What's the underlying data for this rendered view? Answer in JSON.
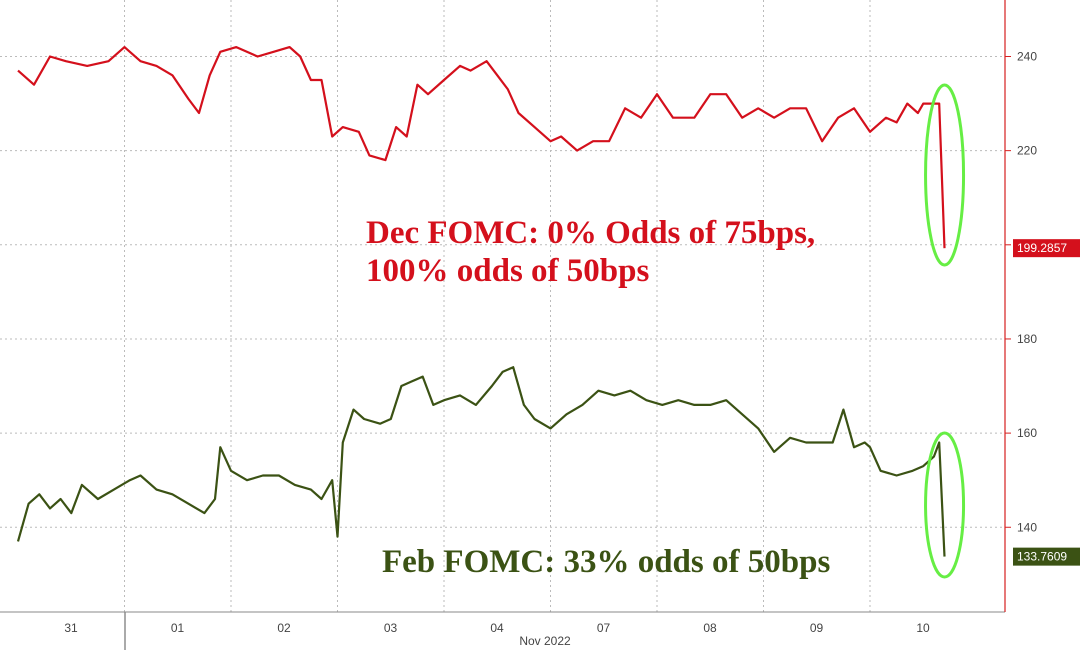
{
  "chart_data": {
    "type": "line",
    "xlabel": "Nov 2022",
    "x_ticks": [
      "31",
      "01",
      "02",
      "03",
      "04",
      "07",
      "08",
      "09",
      "10"
    ],
    "y_ticks": [
      140,
      160,
      180,
      200,
      220,
      240
    ],
    "ylim": [
      122,
      252
    ],
    "grid": true,
    "colors": {
      "red": "#d4101c",
      "green": "#3b5214",
      "highlight": "#66ee44",
      "axis": "#d62020"
    },
    "series": [
      {
        "color": "#d4101c",
        "last_value_label": "199.2857",
        "last_value": 199.2857,
        "points": [
          [
            0,
            237
          ],
          [
            0.3,
            234
          ],
          [
            0.6,
            240
          ],
          [
            0.9,
            239
          ],
          [
            1.3,
            238
          ],
          [
            1.7,
            239
          ],
          [
            2.0,
            242
          ],
          [
            2.3,
            239
          ],
          [
            2.6,
            238
          ],
          [
            2.9,
            236
          ],
          [
            3.2,
            231
          ],
          [
            3.4,
            228
          ],
          [
            3.6,
            236
          ],
          [
            3.8,
            241
          ],
          [
            4.1,
            242
          ],
          [
            4.5,
            240
          ],
          [
            4.8,
            241
          ],
          [
            5.1,
            242
          ],
          [
            5.3,
            240
          ],
          [
            5.5,
            235
          ],
          [
            5.7,
            235
          ],
          [
            5.9,
            223
          ],
          [
            6.1,
            225
          ],
          [
            6.4,
            224
          ],
          [
            6.6,
            219
          ],
          [
            6.9,
            218
          ],
          [
            7.1,
            225
          ],
          [
            7.3,
            223
          ],
          [
            7.5,
            234
          ],
          [
            7.7,
            232
          ],
          [
            8.0,
            235
          ],
          [
            8.3,
            238
          ],
          [
            8.5,
            237
          ],
          [
            8.8,
            239
          ],
          [
            9.0,
            236
          ],
          [
            9.2,
            233
          ],
          [
            9.4,
            228
          ],
          [
            9.7,
            225
          ],
          [
            10.0,
            222
          ],
          [
            10.2,
            223
          ],
          [
            10.5,
            220
          ],
          [
            10.8,
            222
          ],
          [
            11.1,
            222
          ],
          [
            11.4,
            229
          ],
          [
            11.7,
            227
          ],
          [
            12.0,
            232
          ],
          [
            12.3,
            227
          ],
          [
            12.7,
            227
          ],
          [
            13.0,
            232
          ],
          [
            13.3,
            232
          ],
          [
            13.6,
            227
          ],
          [
            13.9,
            229
          ],
          [
            14.2,
            227
          ],
          [
            14.5,
            229
          ],
          [
            14.8,
            229
          ],
          [
            15.1,
            222
          ],
          [
            15.4,
            227
          ],
          [
            15.7,
            229
          ],
          [
            16.0,
            224
          ],
          [
            16.3,
            227
          ],
          [
            16.5,
            226
          ],
          [
            16.7,
            230
          ],
          [
            16.9,
            228
          ],
          [
            17.0,
            230
          ],
          [
            17.3,
            230
          ],
          [
            17.4,
            199.2857
          ]
        ]
      },
      {
        "color": "#3b5214",
        "last_value_label": "133.7609",
        "last_value": 133.7609,
        "points": [
          [
            0,
            137
          ],
          [
            0.2,
            145
          ],
          [
            0.4,
            147
          ],
          [
            0.6,
            144
          ],
          [
            0.8,
            146
          ],
          [
            1.0,
            143
          ],
          [
            1.2,
            149
          ],
          [
            1.5,
            146
          ],
          [
            1.8,
            148
          ],
          [
            2.1,
            150
          ],
          [
            2.3,
            151
          ],
          [
            2.6,
            148
          ],
          [
            2.9,
            147
          ],
          [
            3.2,
            145
          ],
          [
            3.5,
            143
          ],
          [
            3.7,
            146
          ],
          [
            3.8,
            157
          ],
          [
            4.0,
            152
          ],
          [
            4.3,
            150
          ],
          [
            4.6,
            151
          ],
          [
            4.9,
            151
          ],
          [
            5.2,
            149
          ],
          [
            5.5,
            148
          ],
          [
            5.7,
            146
          ],
          [
            5.9,
            150
          ],
          [
            6.0,
            138
          ],
          [
            6.1,
            158
          ],
          [
            6.3,
            165
          ],
          [
            6.5,
            163
          ],
          [
            6.8,
            162
          ],
          [
            7.0,
            163
          ],
          [
            7.2,
            170
          ],
          [
            7.4,
            171
          ],
          [
            7.6,
            172
          ],
          [
            7.8,
            166
          ],
          [
            8.0,
            167
          ],
          [
            8.3,
            168
          ],
          [
            8.6,
            166
          ],
          [
            8.9,
            170
          ],
          [
            9.1,
            173
          ],
          [
            9.3,
            174
          ],
          [
            9.5,
            166
          ],
          [
            9.7,
            163
          ],
          [
            10.0,
            161
          ],
          [
            10.3,
            164
          ],
          [
            10.6,
            166
          ],
          [
            10.9,
            169
          ],
          [
            11.2,
            168
          ],
          [
            11.5,
            169
          ],
          [
            11.8,
            167
          ],
          [
            12.1,
            166
          ],
          [
            12.4,
            167
          ],
          [
            12.7,
            166
          ],
          [
            13.0,
            166
          ],
          [
            13.3,
            167
          ],
          [
            13.6,
            164
          ],
          [
            13.9,
            161
          ],
          [
            14.2,
            156
          ],
          [
            14.5,
            159
          ],
          [
            14.8,
            158
          ],
          [
            15.1,
            158
          ],
          [
            15.3,
            158
          ],
          [
            15.5,
            165
          ],
          [
            15.7,
            157
          ],
          [
            15.9,
            158
          ],
          [
            16.0,
            157
          ],
          [
            16.2,
            152
          ],
          [
            16.5,
            151
          ],
          [
            16.8,
            152
          ],
          [
            17.0,
            153
          ],
          [
            17.2,
            155
          ],
          [
            17.3,
            158
          ],
          [
            17.4,
            133.7609
          ]
        ]
      }
    ],
    "annotations": [
      {
        "lines": [
          "Dec FOMC: 0% Odds of 75bps,",
          "100% odds of 50bps"
        ],
        "color": "#d4101c"
      },
      {
        "lines": [
          "Feb FOMC: 33% odds of 50bps"
        ],
        "color": "#3b5214"
      }
    ]
  }
}
